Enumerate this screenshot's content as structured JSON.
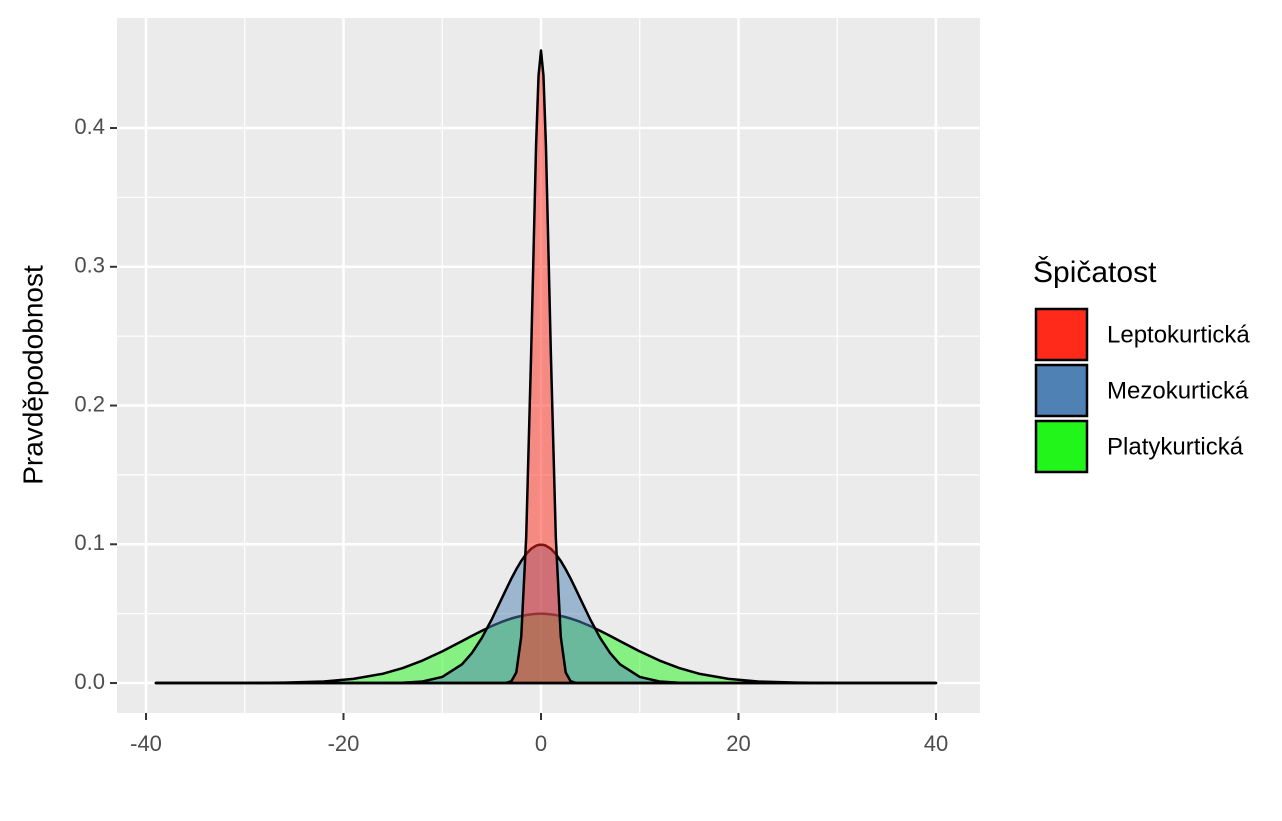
{
  "chart_data": {
    "type": "area",
    "y_label": "Pravděpodobnost",
    "legend_title": "Špičatost",
    "x": [
      -39,
      -35,
      -30,
      -26,
      -22,
      -19,
      -16,
      -14,
      -12,
      -10,
      -8,
      -7,
      -6,
      -5,
      -4,
      -3.5,
      -3,
      -2.5,
      -2,
      -1.5,
      -1,
      -0.5,
      -0.25,
      0,
      0.25,
      0.5,
      1,
      1.5,
      2,
      2.5,
      3,
      3.5,
      4,
      5,
      6,
      7,
      8,
      10,
      12,
      14,
      16,
      19,
      22,
      26,
      30,
      35,
      40
    ],
    "series": [
      {
        "name": "Leptokurtická",
        "color": "#ff2a1a",
        "values": [
          0,
          0,
          0,
          0,
          0,
          0,
          0,
          0,
          0,
          0,
          0,
          0,
          0,
          0,
          0,
          0.00015,
          0.0013,
          0.0077,
          0.0335,
          0.1049,
          0.2373,
          0.3872,
          0.4377,
          0.4559,
          0.4377,
          0.3872,
          0.2373,
          0.1049,
          0.0335,
          0.0077,
          0.0013,
          0.00015,
          0,
          0,
          0,
          0,
          0,
          0,
          0,
          0,
          0,
          0,
          0,
          0,
          0,
          0,
          0
        ]
      },
      {
        "name": "Mezokurtická",
        "color": "#4f81b5",
        "values": [
          0,
          0,
          0,
          0,
          0,
          0,
          0,
          0.0002,
          0.0011,
          0.0044,
          0.0135,
          0.0216,
          0.0324,
          0.0457,
          0.0605,
          0.068,
          0.0753,
          0.082,
          0.088,
          0.093,
          0.0967,
          0.099,
          0.0996,
          0.0997,
          0.0996,
          0.099,
          0.0967,
          0.093,
          0.088,
          0.082,
          0.0753,
          0.068,
          0.0605,
          0.0457,
          0.0324,
          0.0216,
          0.0135,
          0.0044,
          0.0011,
          0.0002,
          0,
          0,
          0,
          0,
          0,
          0,
          0
        ]
      },
      {
        "name": "Platykurtická",
        "color": "#22f51a",
        "values": [
          0,
          0,
          0,
          0.0003,
          0.0011,
          0.003,
          0.0067,
          0.0108,
          0.0162,
          0.0228,
          0.0302,
          0.034,
          0.0376,
          0.041,
          0.044,
          0.0453,
          0.0465,
          0.0475,
          0.0483,
          0.049,
          0.0495,
          0.0498,
          0.0499,
          0.0499,
          0.0499,
          0.0498,
          0.0495,
          0.049,
          0.0483,
          0.0475,
          0.0465,
          0.0453,
          0.044,
          0.041,
          0.0376,
          0.034,
          0.0302,
          0.0228,
          0.0162,
          0.0108,
          0.0067,
          0.003,
          0.0011,
          0.0003,
          0,
          0,
          0
        ]
      }
    ],
    "alpha": 0.5,
    "xlim": [
      -42.94,
      44.46
    ],
    "ylim": [
      -0.0216,
      0.4793
    ],
    "xticks": [
      -40,
      -20,
      0,
      20,
      40
    ],
    "yticks": [
      {
        "value": 0,
        "label": "0.0"
      },
      0.1,
      0.2,
      0.3,
      0.4
    ],
    "minor_xticks": [
      -30,
      -10,
      10,
      30
    ],
    "minor_yticks": [
      0.05,
      0.15,
      0.25,
      0.35
    ],
    "grid": true
  }
}
